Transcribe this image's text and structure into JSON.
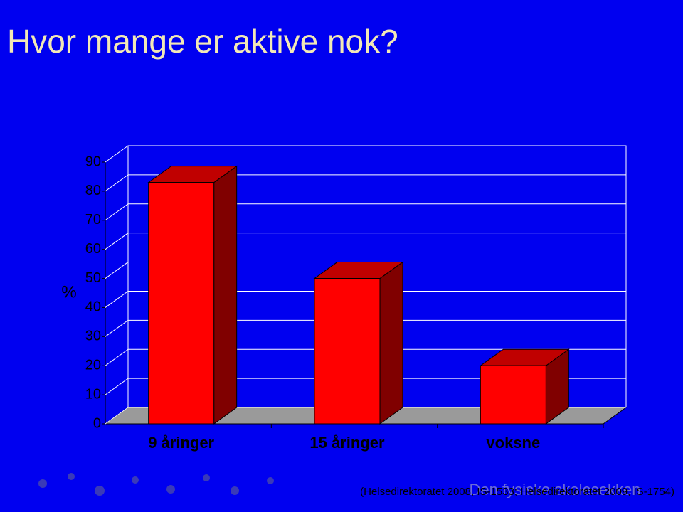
{
  "chart_data": {
    "type": "bar3d",
    "title": "Hvor mange er aktive nok?",
    "y_label": "%",
    "categories": [
      "9 åringer",
      "15 åringer",
      "voksne"
    ],
    "values": [
      83,
      50,
      20
    ],
    "color": "#ff0000",
    "top_color": "#c00000",
    "side_color": "#800000",
    "ylim": [
      0,
      90
    ],
    "yticks": [
      0,
      10,
      20,
      30,
      40,
      50,
      60,
      70,
      80,
      90
    ],
    "grid": true
  },
  "source": "(Helsedirektoratet 2008, IS-1533; Helsedirektoratet 2009, IS-1754)",
  "watermark": "Den fysiske skolesekken"
}
